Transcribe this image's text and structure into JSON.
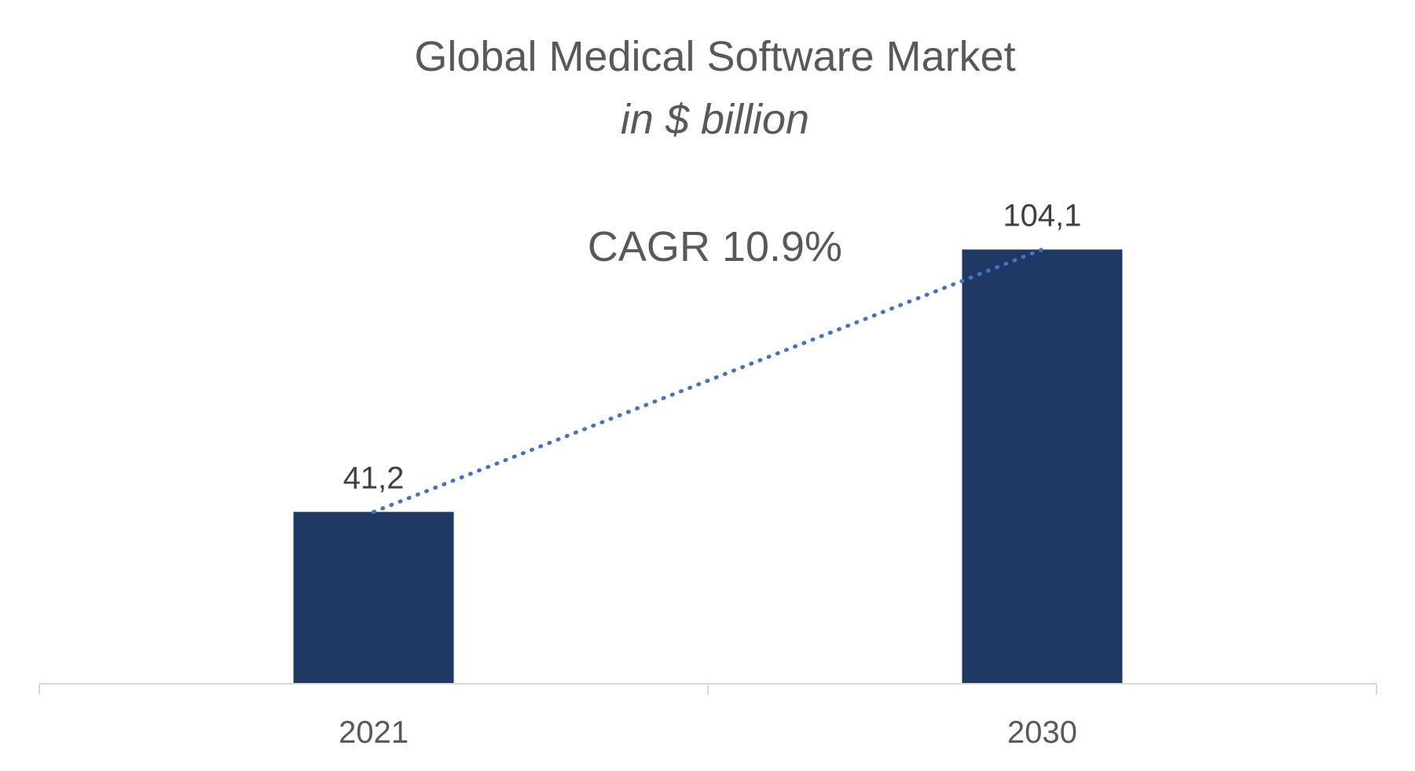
{
  "chart_data": {
    "type": "bar",
    "title": "Global Medical Software Market",
    "subtitle": "in $ billion",
    "categories": [
      "2021",
      "2030"
    ],
    "values": [
      41.2,
      104.1
    ],
    "data_labels": [
      "41,2",
      "104,1"
    ],
    "annotation": "CAGR 10.9%",
    "trendline": {
      "style": "dotted",
      "from_category": "2021",
      "to_category": "2030"
    },
    "ylim": [
      0,
      130
    ],
    "grid": false,
    "legend": "none",
    "colors": {
      "bar": "#203864",
      "trendline": "#4472C4",
      "text": "#595959",
      "axis": "#D9D9D9"
    }
  }
}
